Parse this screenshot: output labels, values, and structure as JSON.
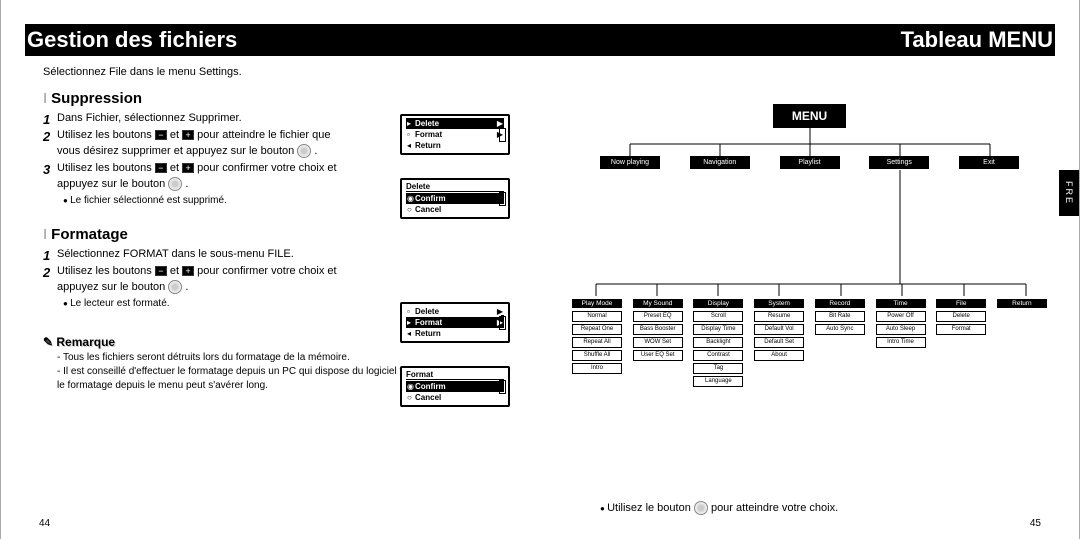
{
  "left": {
    "title": "Gestion des fichiers",
    "intro": "Sélectionnez File dans le menu Settings.",
    "suppression": {
      "heading": "Suppression",
      "step1": "Dans Fichier, sélectionnez Supprimer.",
      "step2a": "Utilisez les boutons ",
      "step2b": " et ",
      "step2c": " pour atteindre le fichier que vous désirez supprimer et appuyez sur le bouton ",
      "step3a": "Utilisez les boutons ",
      "step3b": " et ",
      "step3c": " pour confirmer votre choix et appuyez sur le bouton ",
      "bullet": "Le fichier sélectionné est supprimé."
    },
    "formatage": {
      "heading": "Formatage",
      "step1": "Sélectionnez FORMAT dans le sous-menu FILE.",
      "step2a": "Utilisez les boutons ",
      "step2b": " et ",
      "step2c": " pour confirmer votre choix et appuyez sur le bouton ",
      "bullet": "Le lecteur est formaté."
    },
    "remark": {
      "heading": "Remarque",
      "item1": "Tous les fichiers seront détruits lors du formatage de la mémoire.",
      "item2": "Il est conseillé d'effectuer le formatage depuis un PC qui dispose du logiciel fourni avec l'appareil, car le formatage depuis le menu peut s'avérer long."
    },
    "screens": {
      "s1": {
        "rows": [
          {
            "mk": "▸",
            "label": "Delete",
            "sel": true,
            "arrow": "▶"
          },
          {
            "mk": "▫",
            "label": "Format",
            "arrow": "▶"
          },
          {
            "mk": "◂",
            "label": "Return"
          }
        ]
      },
      "s2": {
        "title": "Delete",
        "rows": [
          {
            "mk": "◉",
            "label": "Confirm",
            "sel": true
          },
          {
            "mk": "○",
            "label": "Cancel"
          }
        ]
      },
      "s3": {
        "rows": [
          {
            "mk": "▫",
            "label": "Delete",
            "arrow": "▶"
          },
          {
            "mk": "▸",
            "label": "Format",
            "sel": true,
            "arrow": "▶"
          },
          {
            "mk": "◂",
            "label": "Return"
          }
        ]
      },
      "s4": {
        "title": "Format",
        "rows": [
          {
            "mk": "◉",
            "label": "Confirm",
            "sel": true
          },
          {
            "mk": "○",
            "label": "Cancel"
          }
        ]
      }
    },
    "page_num": "44"
  },
  "right": {
    "title": "Tableau MENU",
    "menu_label": "MENU",
    "fre": "FRE",
    "lvl1": [
      "Now playing",
      "Navigation",
      "Playlist",
      "Settings",
      "Exit"
    ],
    "lvl2": [
      {
        "head": "Play Mode",
        "items": [
          "Normal",
          "Repeat One",
          "Repeat All",
          "Shuffle All",
          "Intro"
        ]
      },
      {
        "head": "My Sound",
        "items": [
          "Preset EQ",
          "Bass Booster",
          "WOW Set",
          "User EQ Set"
        ]
      },
      {
        "head": "Display",
        "items": [
          "Scroll",
          "Display Time",
          "Backlight",
          "Contrast",
          "Tag",
          "Language"
        ]
      },
      {
        "head": "System",
        "items": [
          "Resume",
          "Default Vol",
          "Default Set",
          "About"
        ]
      },
      {
        "head": "Record",
        "items": [
          "Bit Rate",
          "Auto Sync"
        ]
      },
      {
        "head": "Time",
        "items": [
          "Power Off",
          "Auto Sleep",
          "Intro Time"
        ]
      },
      {
        "head": "File",
        "items": [
          "Delete",
          "Format"
        ]
      },
      {
        "head": "Return",
        "items": []
      }
    ],
    "note_a": "Utilisez le bouton ",
    "note_b": " pour atteindre votre choix.",
    "page_num": "45"
  }
}
